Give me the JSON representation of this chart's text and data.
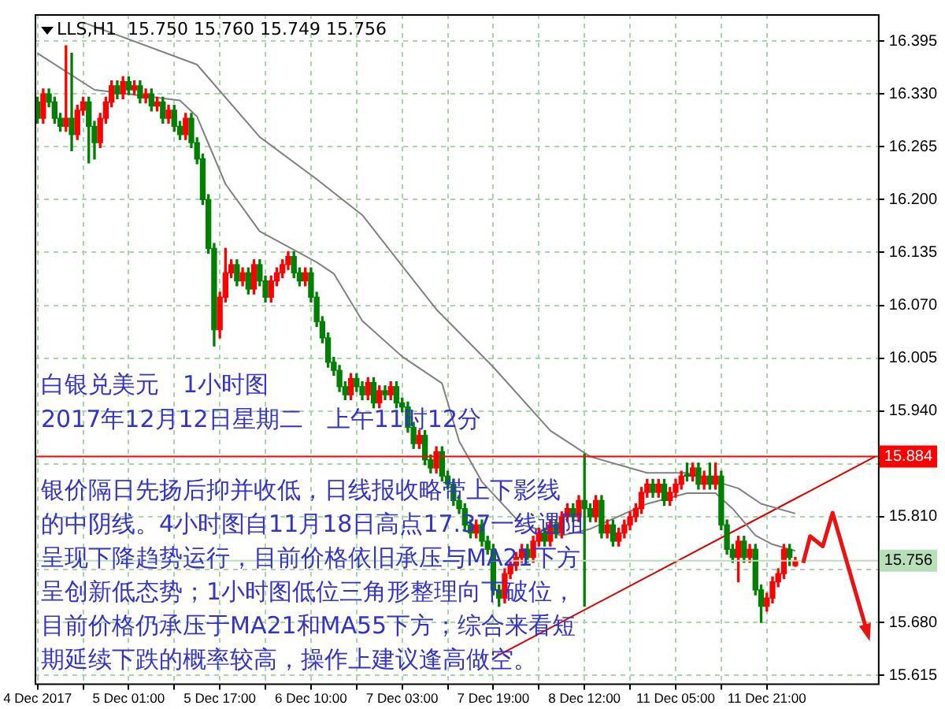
{
  "chart_data": {
    "type": "candlestick",
    "title": "LLS,H1  15.750 15.760 15.749 15.756",
    "categories": [
      "4 Dec 2017",
      null,
      null,
      null,
      null,
      null,
      null,
      null,
      null,
      null,
      null,
      null,
      null,
      null,
      null,
      null,
      "5 Dec 01:00",
      null,
      null,
      null,
      null,
      null,
      null,
      null,
      null,
      null,
      null,
      null,
      null,
      null,
      null,
      null,
      "5 Dec 17:00",
      null,
      null,
      null,
      null,
      null,
      null,
      null,
      null,
      null,
      null,
      null,
      null,
      null,
      null,
      null,
      "6 Dec 10:00",
      null,
      null,
      null,
      null,
      null,
      null,
      null,
      null,
      null,
      null,
      null,
      null,
      null,
      null,
      null,
      "7 Dec 03:00",
      null,
      null,
      null,
      null,
      null,
      null,
      null,
      null,
      null,
      null,
      null,
      null,
      null,
      null,
      null,
      "7 Dec 19:00",
      null,
      null,
      null,
      null,
      null,
      null,
      null,
      null,
      null,
      null,
      null,
      null,
      null,
      null,
      null,
      "8 Dec 12:00",
      null,
      null,
      null,
      null,
      null,
      null,
      null,
      null,
      null,
      null,
      null,
      null,
      null,
      null,
      null,
      "11 Dec 05:00",
      null,
      null,
      null,
      null,
      null,
      null,
      null,
      null,
      null,
      null,
      null,
      null,
      null,
      null,
      null,
      "11 Dec 21:00",
      null,
      null,
      null,
      null,
      null,
      null,
      null,
      null,
      null,
      null,
      null,
      null,
      null,
      null,
      null,
      null,
      null,
      null,
      null
    ],
    "ohlc": [
      [
        16.32,
        16.326,
        16.294,
        16.3
      ],
      [
        16.3,
        16.336,
        16.294,
        16.33
      ],
      [
        16.33,
        16.336,
        16.314,
        16.32
      ],
      [
        16.32,
        16.326,
        16.294,
        16.3
      ],
      [
        16.3,
        16.306,
        16.284,
        16.29
      ],
      [
        16.29,
        16.389,
        16.284,
        16.3
      ],
      [
        16.3,
        16.38,
        16.26,
        16.28
      ],
      [
        16.28,
        16.316,
        16.274,
        16.31
      ],
      [
        16.31,
        16.326,
        16.304,
        16.32
      ],
      [
        16.32,
        16.326,
        16.245,
        16.29
      ],
      [
        16.29,
        16.296,
        16.25,
        16.27
      ],
      [
        16.27,
        16.306,
        16.264,
        16.3
      ],
      [
        16.3,
        16.326,
        16.294,
        16.32
      ],
      [
        16.32,
        16.346,
        16.314,
        16.34
      ],
      [
        16.34,
        16.346,
        16.324,
        16.33
      ],
      [
        16.33,
        16.351,
        16.324,
        16.345
      ],
      [
        16.345,
        16.351,
        16.329,
        16.335
      ],
      [
        16.335,
        16.346,
        16.329,
        16.34
      ],
      [
        16.34,
        16.346,
        16.319,
        16.325
      ],
      [
        16.325,
        16.336,
        16.319,
        16.33
      ],
      [
        16.33,
        16.336,
        16.309,
        16.315
      ],
      [
        16.315,
        16.326,
        16.309,
        16.32
      ],
      [
        16.32,
        16.326,
        16.294,
        16.3
      ],
      [
        16.3,
        16.316,
        16.294,
        16.31
      ],
      [
        16.31,
        16.316,
        16.284,
        16.29
      ],
      [
        16.29,
        16.296,
        16.274,
        16.28
      ],
      [
        16.28,
        16.306,
        16.274,
        16.3
      ],
      [
        16.3,
        16.306,
        16.264,
        16.27
      ],
      [
        16.27,
        16.276,
        16.244,
        16.25
      ],
      [
        16.25,
        16.256,
        16.194,
        16.2
      ],
      [
        16.2,
        16.206,
        16.134,
        16.14
      ],
      [
        16.14,
        16.146,
        16.02,
        16.04
      ],
      [
        16.04,
        16.086,
        16.03,
        16.08
      ],
      [
        16.08,
        16.14,
        16.074,
        16.11
      ],
      [
        16.11,
        16.126,
        16.104,
        16.12
      ],
      [
        16.12,
        16.126,
        16.094,
        16.1
      ],
      [
        16.1,
        16.116,
        16.094,
        16.11
      ],
      [
        16.11,
        16.116,
        16.084,
        16.09
      ],
      [
        16.09,
        16.126,
        16.084,
        16.12
      ],
      [
        16.12,
        16.126,
        16.094,
        16.1
      ],
      [
        16.1,
        16.106,
        16.074,
        16.08
      ],
      [
        16.08,
        16.106,
        16.074,
        16.1
      ],
      [
        16.1,
        16.116,
        16.094,
        16.11
      ],
      [
        16.11,
        16.126,
        16.104,
        16.12
      ],
      [
        16.12,
        16.136,
        16.114,
        16.13
      ],
      [
        16.13,
        16.136,
        16.104,
        16.11
      ],
      [
        16.11,
        16.116,
        16.094,
        16.1
      ],
      [
        16.1,
        16.116,
        16.094,
        16.11
      ],
      [
        16.11,
        16.116,
        16.074,
        16.08
      ],
      [
        16.08,
        16.086,
        16.044,
        16.05
      ],
      [
        16.05,
        16.056,
        16.024,
        16.03
      ],
      [
        16.03,
        16.036,
        15.994,
        16.0
      ],
      [
        16.0,
        16.006,
        15.984,
        15.99
      ],
      [
        15.99,
        15.996,
        15.964,
        15.97
      ],
      [
        15.97,
        15.976,
        15.954,
        15.96
      ],
      [
        15.96,
        15.986,
        15.954,
        15.98
      ],
      [
        15.98,
        15.986,
        15.964,
        15.97
      ],
      [
        15.97,
        15.976,
        15.954,
        15.96
      ],
      [
        15.96,
        15.981,
        15.954,
        15.975
      ],
      [
        15.975,
        15.981,
        15.944,
        15.95
      ],
      [
        15.95,
        15.971,
        15.944,
        15.965
      ],
      [
        15.965,
        15.971,
        15.954,
        15.96
      ],
      [
        15.96,
        15.976,
        15.954,
        15.97
      ],
      [
        15.97,
        15.976,
        15.944,
        15.95
      ],
      [
        15.95,
        15.956,
        15.939,
        15.945
      ],
      [
        15.945,
        15.951,
        15.914,
        15.92
      ],
      [
        15.92,
        15.926,
        15.894,
        15.9
      ],
      [
        15.9,
        15.916,
        15.894,
        15.91
      ],
      [
        15.91,
        15.916,
        15.874,
        15.88
      ],
      [
        15.88,
        15.886,
        15.864,
        15.87
      ],
      [
        15.87,
        15.896,
        15.864,
        15.89
      ],
      [
        15.89,
        15.896,
        15.854,
        15.86
      ],
      [
        15.86,
        15.866,
        15.844,
        15.85
      ],
      [
        15.85,
        15.856,
        15.824,
        15.83
      ],
      [
        15.83,
        15.836,
        15.814,
        15.82
      ],
      [
        15.82,
        15.826,
        15.794,
        15.8
      ],
      [
        15.8,
        15.806,
        15.784,
        15.79
      ],
      [
        15.79,
        15.806,
        15.784,
        15.8
      ],
      [
        15.8,
        15.806,
        15.774,
        15.78
      ],
      [
        15.78,
        15.786,
        15.764,
        15.77
      ],
      [
        15.77,
        15.776,
        15.714,
        15.72
      ],
      [
        15.72,
        15.726,
        15.7,
        15.71
      ],
      [
        15.71,
        15.746,
        15.704,
        15.74
      ],
      [
        15.74,
        15.756,
        15.734,
        15.75
      ],
      [
        15.75,
        15.766,
        15.744,
        15.76
      ],
      [
        15.76,
        15.776,
        15.754,
        15.77
      ],
      [
        15.77,
        15.776,
        15.754,
        15.76
      ],
      [
        15.76,
        15.786,
        15.754,
        15.78
      ],
      [
        15.78,
        15.796,
        15.774,
        15.79
      ],
      [
        15.79,
        15.796,
        15.774,
        15.78
      ],
      [
        15.78,
        15.806,
        15.774,
        15.8
      ],
      [
        15.8,
        15.806,
        15.784,
        15.79
      ],
      [
        15.79,
        15.816,
        15.784,
        15.81
      ],
      [
        15.81,
        15.826,
        15.804,
        15.82
      ],
      [
        15.82,
        15.826,
        15.804,
        15.81
      ],
      [
        15.81,
        15.836,
        15.804,
        15.83
      ],
      [
        15.83,
        15.887,
        15.7,
        15.82
      ],
      [
        15.82,
        15.826,
        15.804,
        15.81
      ],
      [
        15.81,
        15.836,
        15.804,
        15.83
      ],
      [
        15.83,
        15.836,
        15.784,
        15.79
      ],
      [
        15.79,
        15.806,
        15.784,
        15.8
      ],
      [
        15.8,
        15.806,
        15.774,
        15.78
      ],
      [
        15.78,
        15.796,
        15.774,
        15.79
      ],
      [
        15.79,
        15.806,
        15.784,
        15.8
      ],
      [
        15.8,
        15.816,
        15.794,
        15.81
      ],
      [
        15.81,
        15.826,
        15.804,
        15.82
      ],
      [
        15.82,
        15.846,
        15.814,
        15.84
      ],
      [
        15.84,
        15.856,
        15.834,
        15.85
      ],
      [
        15.85,
        15.856,
        15.834,
        15.84
      ],
      [
        15.84,
        15.856,
        15.834,
        15.85
      ],
      [
        15.85,
        15.856,
        15.824,
        15.83
      ],
      [
        15.83,
        15.846,
        15.824,
        15.84
      ],
      [
        15.84,
        15.856,
        15.834,
        15.85
      ],
      [
        15.85,
        15.866,
        15.844,
        15.86
      ],
      [
        15.86,
        15.876,
        15.854,
        15.86
      ],
      [
        15.86,
        15.876,
        15.854,
        15.87
      ],
      [
        15.87,
        15.876,
        15.844,
        15.85
      ],
      [
        15.85,
        15.866,
        15.844,
        15.86
      ],
      [
        15.86,
        15.876,
        15.844,
        15.85
      ],
      [
        15.85,
        15.876,
        15.844,
        15.86
      ],
      [
        15.86,
        15.866,
        15.794,
        15.8
      ],
      [
        15.8,
        15.806,
        15.764,
        15.77
      ],
      [
        15.77,
        15.776,
        15.754,
        15.76
      ],
      [
        15.76,
        15.786,
        15.73,
        15.78
      ],
      [
        15.78,
        15.786,
        15.754,
        15.76
      ],
      [
        15.76,
        15.776,
        15.754,
        15.77
      ],
      [
        15.77,
        15.776,
        15.714,
        15.72
      ],
      [
        15.72,
        15.726,
        15.68,
        15.7
      ],
      [
        15.7,
        15.716,
        15.694,
        15.71
      ],
      [
        15.71,
        15.736,
        15.704,
        15.73
      ],
      [
        15.73,
        15.746,
        15.724,
        15.74
      ],
      [
        15.74,
        15.776,
        15.734,
        15.77
      ],
      [
        15.77,
        15.776,
        15.75,
        15.76
      ],
      [
        15.75,
        15.76,
        15.749,
        15.756
      ],
      null,
      null,
      null,
      null,
      null,
      null,
      null,
      null,
      null,
      null,
      null,
      null,
      null,
      null
    ],
    "colors": [
      "#008000",
      "#ff0000",
      "#008000",
      "#008000",
      "#008000",
      "#ff0000",
      "#008000",
      "#ff0000",
      "#ff0000",
      "#008000",
      "#008000",
      "#ff0000",
      "#ff0000",
      "#ff0000",
      "#008000",
      "#ff0000",
      "#008000",
      "#ff0000",
      "#008000",
      "#ff0000",
      "#008000",
      "#ff0000",
      "#008000",
      "#ff0000",
      "#008000",
      "#008000",
      "#ff0000",
      "#008000",
      "#008000",
      "#008000",
      "#008000",
      "#008000",
      "#ff0000",
      "#ff0000",
      "#ff0000",
      "#008000",
      "#ff0000",
      "#008000",
      "#ff0000",
      "#008000",
      "#008000",
      "#ff0000",
      "#ff0000",
      "#ff0000",
      "#ff0000",
      "#008000",
      "#008000",
      "#ff0000",
      "#008000",
      "#008000",
      "#008000",
      "#008000",
      "#008000",
      "#008000",
      "#008000",
      "#ff0000",
      "#008000",
      "#008000",
      "#ff0000",
      "#008000",
      "#ff0000",
      "#008000",
      "#ff0000",
      "#008000",
      "#008000",
      "#008000",
      "#008000",
      "#ff0000",
      "#008000",
      "#008000",
      "#ff0000",
      "#008000",
      "#008000",
      "#008000",
      "#008000",
      "#008000",
      "#008000",
      "#ff0000",
      "#008000",
      "#008000",
      "#008000",
      "#008000",
      "#ff0000",
      "#ff0000",
      "#ff0000",
      "#ff0000",
      "#008000",
      "#ff0000",
      "#ff0000",
      "#008000",
      "#ff0000",
      "#008000",
      "#ff0000",
      "#ff0000",
      "#008000",
      "#ff0000",
      "#008000",
      "#008000",
      "#ff0000",
      "#008000",
      "#ff0000",
      "#008000",
      "#ff0000",
      "#ff0000",
      "#ff0000",
      "#ff0000",
      "#ff0000",
      "#ff0000",
      "#008000",
      "#ff0000",
      "#008000",
      "#ff0000",
      "#ff0000",
      "#ff0000",
      "#008000",
      "#ff0000",
      "#008000",
      "#ff0000",
      "#008000",
      "#ff0000",
      "#008000",
      "#008000",
      "#008000",
      "#ff0000",
      "#008000",
      "#ff0000",
      "#008000",
      "#008000",
      "#ff0000",
      "#ff0000",
      "#ff0000",
      "#ff0000",
      "#008000",
      "#ff0000",
      null,
      null,
      null,
      null,
      null,
      null,
      null,
      null,
      null,
      null,
      null,
      null,
      null,
      null
    ],
    "series": [
      {
        "type": "line",
        "color": "#808080",
        "values": [
          16.38,
          null,
          null,
          null,
          null,
          null,
          null,
          null,
          null,
          null,
          16.335,
          null,
          null,
          null,
          null,
          null,
          null,
          null,
          null,
          null,
          null,
          null,
          null,
          null,
          null,
          16.322,
          null,
          null,
          16.302,
          null,
          null,
          null,
          null,
          16.219,
          null,
          null,
          null,
          null,
          null,
          16.161,
          null,
          null,
          null,
          null,
          null,
          null,
          null,
          null,
          null,
          16.123,
          null,
          null,
          16.109,
          null,
          null,
          null,
          null,
          16.051,
          null,
          null,
          null,
          null,
          null,
          null,
          16.007,
          null,
          null,
          null,
          null,
          null,
          null,
          15.974,
          null,
          null,
          15.903,
          null,
          null,
          null,
          15.853,
          null,
          null,
          null,
          null,
          null,
          null,
          15.8,
          null,
          null,
          null,
          null,
          null,
          null,
          15.787,
          null,
          null,
          null,
          null,
          15.795,
          null,
          null,
          null,
          null,
          null,
          null,
          null,
          null,
          null,
          15.826,
          null,
          null,
          null,
          null,
          null,
          null,
          15.839,
          null,
          null,
          null,
          null,
          15.839,
          null,
          null,
          15.82,
          null,
          null,
          null,
          15.787,
          null,
          null,
          15.776,
          null,
          null,
          null,
          15.768,
          null,
          null,
          null,
          null,
          null,
          null,
          null,
          null,
          null,
          null,
          null,
          null,
          null,
          null
        ]
      },
      {
        "type": "line",
        "color": "#808080",
        "values": [
          null,
          null,
          null,
          null,
          null,
          null,
          null,
          null,
          16.418,
          null,
          null,
          null,
          null,
          null,
          null,
          null,
          null,
          null,
          null,
          null,
          null,
          null,
          null,
          null,
          null,
          null,
          null,
          null,
          16.366,
          null,
          null,
          null,
          null,
          null,
          null,
          null,
          null,
          null,
          null,
          16.277,
          null,
          null,
          null,
          null,
          null,
          null,
          null,
          null,
          null,
          16.225,
          null,
          null,
          null,
          null,
          null,
          null,
          null,
          16.181,
          null,
          null,
          null,
          null,
          null,
          null,
          null,
          null,
          null,
          null,
          null,
          null,
          16.065,
          null,
          null,
          null,
          null,
          null,
          null,
          null,
          null,
          null,
          15.994,
          null,
          null,
          null,
          null,
          null,
          null,
          null,
          null,
          null,
          15.916,
          null,
          null,
          null,
          null,
          null,
          null,
          15.884,
          null,
          null,
          null,
          null,
          null,
          null,
          null,
          null,
          null,
          15.864,
          null,
          null,
          null,
          null,
          null,
          null,
          15.864,
          null,
          null,
          null,
          null,
          null,
          null,
          null,
          null,
          15.845,
          null,
          null,
          null,
          15.826,
          null,
          null,
          null,
          null,
          null,
          15.814,
          null,
          null,
          null,
          null,
          null,
          null,
          null,
          null,
          null,
          null,
          null,
          null,
          null,
          null
        ]
      },
      {
        "type": "line",
        "color": "#dd0000",
        "values": [
          null,
          null,
          null,
          null,
          null,
          null,
          null,
          null,
          null,
          null,
          null,
          null,
          null,
          null,
          null,
          null,
          null,
          null,
          null,
          null,
          null,
          null,
          null,
          null,
          null,
          null,
          null,
          null,
          null,
          null,
          null,
          null,
          null,
          null,
          null,
          null,
          null,
          null,
          null,
          null,
          null,
          null,
          null,
          null,
          null,
          null,
          null,
          null,
          null,
          null,
          null,
          null,
          null,
          null,
          null,
          null,
          null,
          null,
          null,
          null,
          null,
          null,
          null,
          null,
          null,
          null,
          null,
          null,
          null,
          null,
          null,
          null,
          null,
          null,
          null,
          null,
          null,
          null,
          null,
          null,
          null,
          15.64,
          null,
          null,
          null,
          null,
          null,
          null,
          null,
          null,
          null,
          null,
          null,
          null,
          null,
          null,
          null,
          null,
          null,
          null,
          null,
          null,
          null,
          null,
          null,
          null,
          null,
          null,
          null,
          null,
          null,
          null,
          null,
          null,
          null,
          null,
          null,
          null,
          null,
          null,
          null,
          null,
          null,
          null,
          null,
          null,
          null,
          null,
          null,
          null,
          null,
          null,
          null,
          null,
          null,
          null,
          null,
          null,
          null,
          null,
          null,
          null,
          null,
          null,
          null,
          null,
          null,
          15.884
        ]
      }
    ],
    "ylim": [
      15.605,
      16.428
    ],
    "yticks": [
      15.615,
      {
        "value": 15.68,
        "label": "15.680"
      },
      {
        "value": 15.745,
        "label": null
      },
      {
        "value": 15.81,
        "label": "15.810"
      },
      {
        "value": 15.875,
        "label": null
      },
      {
        "value": 15.94,
        "label": "15.940"
      },
      16.005,
      {
        "value": 16.07,
        "label": "16.070"
      },
      16.135,
      {
        "value": 16.2,
        "label": "16.200"
      },
      16.265,
      {
        "value": 16.33,
        "label": "16.330"
      },
      16.395
    ],
    "ref_lines": [
      {
        "axis": "y",
        "value": 15.884,
        "label": "15.884",
        "color": "#ff0000"
      },
      {
        "axis": "y",
        "value": 15.756,
        "label": "15.756",
        "color": "#b8e0b8"
      }
    ],
    "annotations": [
      "白银兑美元　1小时图",
      "2017年12月12日星期二　上午11时12分",
      "银价隔日先扬后抑并收低，日线报收略带上下影线",
      "的中阴线。4小时图自11月18日高点17.37一线遇阻",
      "呈现下降趋势运行，目前价格依旧承压与MA21下方",
      "呈创新低态势；1小时图低位三角形整理向下破位，",
      "目前价格仍承压于MA21和MA55下方；综合来看短",
      "期延续下跌的概率较高，操作上建议逢高做空。"
    ],
    "grid": true,
    "legend": false
  }
}
